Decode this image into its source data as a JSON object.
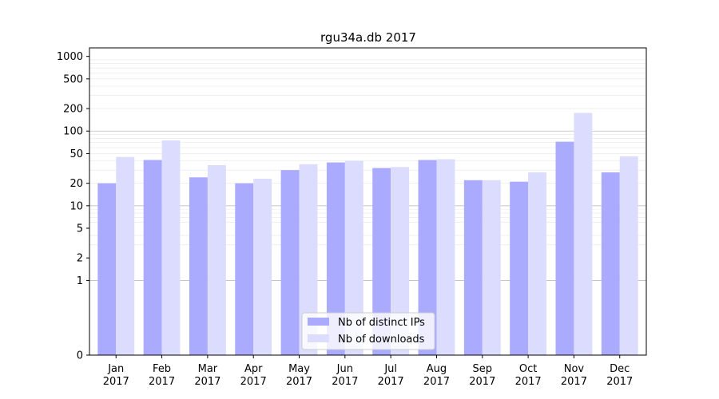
{
  "chart_data": {
    "type": "bar",
    "title": "rgu34a.db 2017",
    "xlabel": "",
    "ylabel": "",
    "y_scale": "symlog",
    "ylim": [
      0,
      1300
    ],
    "y_ticks": [
      0,
      1,
      2,
      5,
      10,
      20,
      50,
      100,
      200,
      500,
      1000
    ],
    "categories": [
      "Jan\n2017",
      "Feb\n2017",
      "Mar\n2017",
      "Apr\n2017",
      "May\n2017",
      "Jun\n2017",
      "Jul\n2017",
      "Aug\n2017",
      "Sep\n2017",
      "Oct\n2017",
      "Nov\n2017",
      "Dec\n2017"
    ],
    "series": [
      {
        "name": "Nb of distinct IPs",
        "color": "#aaaaff",
        "values": [
          20,
          41,
          24,
          20,
          30,
          38,
          32,
          41,
          22,
          21,
          72,
          28
        ]
      },
      {
        "name": "Nb of downloads",
        "color": "#dcdcff",
        "values": [
          45,
          75,
          35,
          23,
          36,
          40,
          33,
          42,
          22,
          28,
          175,
          46
        ]
      }
    ],
    "legend_position": "bottom-center",
    "grid": true
  }
}
